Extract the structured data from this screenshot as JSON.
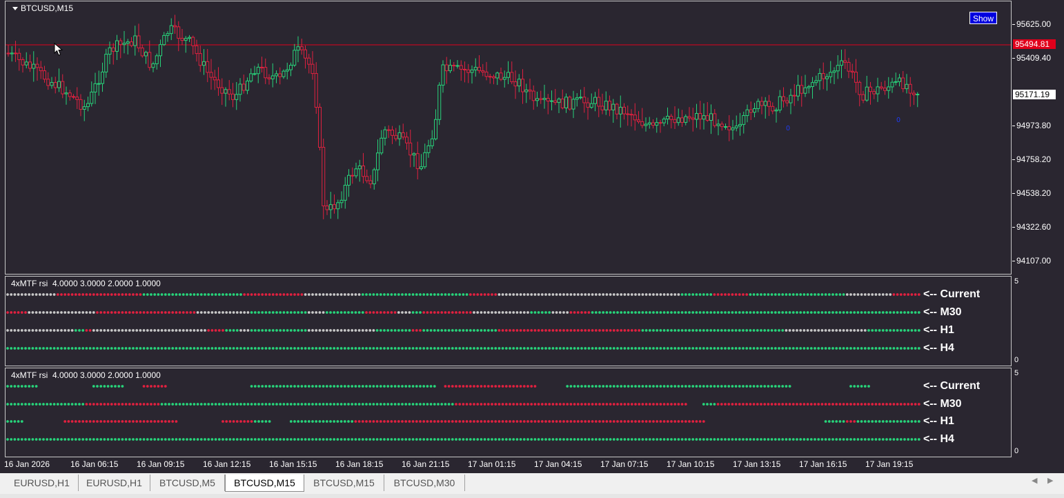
{
  "chart": {
    "symbol_title": "BTCUSD,M15",
    "show_button": "Show",
    "price_axis": [
      "95625.00",
      "95409.40",
      "94973.80",
      "94758.20",
      "94538.20",
      "94322.60",
      "94107.00"
    ],
    "bid_price": "95494.81",
    "current_price": "95171.19",
    "marker_glyph": "0",
    "colors": {
      "background": "#2a2630",
      "bull": "#27d37a",
      "bear": "#e0203f",
      "neutral": "#c8c8c8",
      "bid_line": "#e0001b",
      "marker": "#1e3cff"
    }
  },
  "indicators": [
    {
      "title": "4xMTF rsi  4.0000 3.0000 2.0000 1.0000",
      "scale_top": "5",
      "scale_bottom": "0",
      "rows": [
        "<-- Current",
        "<-- M30",
        "<-- H1",
        "<-- H4"
      ]
    },
    {
      "title": "4xMTF rsi  4.0000 3.0000 2.0000 1.0000",
      "scale_top": "5",
      "scale_bottom": "0",
      "rows": [
        "<-- Current",
        "<-- M30",
        "<-- H1",
        "<-- H4"
      ]
    }
  ],
  "time_axis": [
    "16 Jan 2026",
    "16 Jan 06:15",
    "16 Jan 09:15",
    "16 Jan 12:15",
    "16 Jan 15:15",
    "16 Jan 18:15",
    "16 Jan 21:15",
    "17 Jan 01:15",
    "17 Jan 04:15",
    "17 Jan 07:15",
    "17 Jan 10:15",
    "17 Jan 13:15",
    "17 Jan 16:15",
    "17 Jan 19:15"
  ],
  "tabs": [
    {
      "label": "EURUSD,H1",
      "active": false
    },
    {
      "label": "EURUSD,H1",
      "active": false
    },
    {
      "label": "BTCUSD,M5",
      "active": false
    },
    {
      "label": "BTCUSD,M15",
      "active": true
    },
    {
      "label": "BTCUSD,M15",
      "active": false
    },
    {
      "label": "BTCUSD,M30",
      "active": false
    }
  ],
  "tab_nav": {
    "prev": "◀",
    "next": "▶"
  }
}
